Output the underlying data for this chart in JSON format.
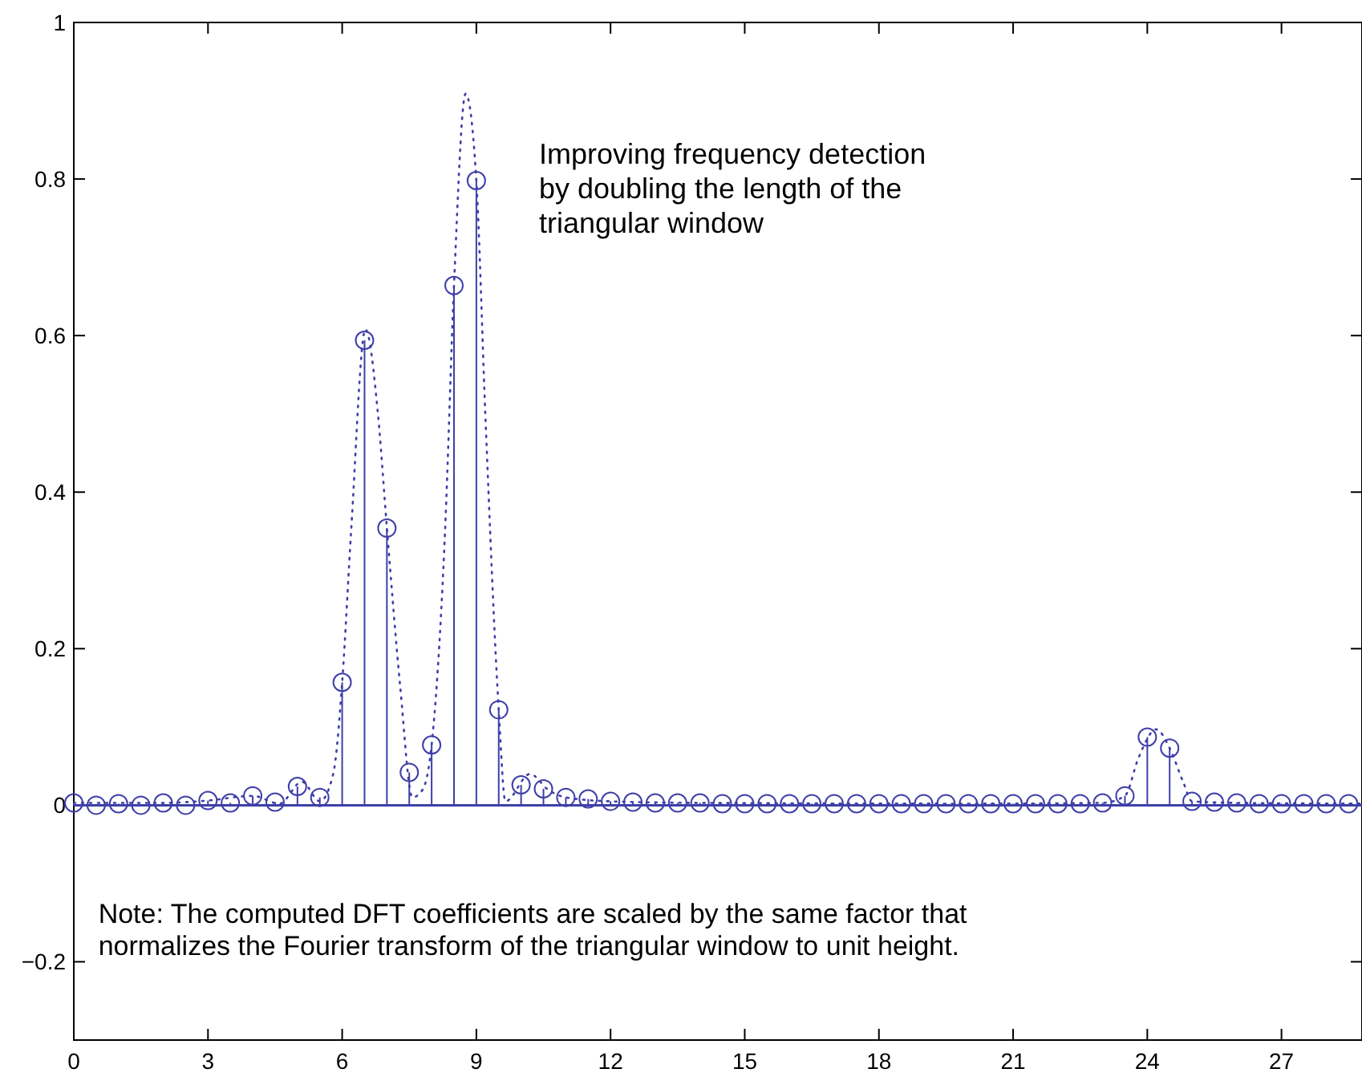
{
  "chart_data": {
    "type": "lollipop",
    "xlim": [
      0,
      28.8
    ],
    "ylim": [
      -0.3,
      1
    ],
    "xticks": [
      0,
      3,
      6,
      9,
      12,
      15,
      18,
      21,
      24,
      27
    ],
    "yticks": [
      {
        "value": -0.2,
        "label": "−0.2"
      },
      0,
      0.2,
      0.4,
      0.6,
      0.8,
      1
    ],
    "grid": false,
    "marker": "circle",
    "ref_lines": [
      {
        "axis": "y",
        "value": 0,
        "color": "#3f3fa8"
      }
    ],
    "series": [
      {
        "type": "line",
        "color": "#3f3fa8",
        "line_style": "dotted",
        "marker": "none",
        "x": [
          0,
          1,
          2,
          3,
          4,
          4.6,
          5.1,
          5.5,
          5.8,
          6,
          6.2,
          6.52,
          6.8,
          7,
          7.3,
          7.57,
          7.8,
          8,
          8.3,
          8.5,
          8.76,
          9,
          9.2,
          9.5,
          9.65,
          10.2,
          10.6,
          11,
          12,
          14,
          20,
          23,
          23.5,
          23.8,
          24.2,
          24.5,
          24.8,
          25,
          26,
          28.8
        ],
        "values": [
          0.003,
          0.003,
          0.003,
          0.006,
          0.012,
          0.002,
          0.03,
          0.005,
          0.04,
          0.157,
          0.35,
          0.608,
          0.5,
          0.354,
          0.15,
          0.01,
          0.02,
          0.077,
          0.35,
          0.664,
          0.909,
          0.798,
          0.5,
          0.122,
          0.005,
          0.04,
          0.02,
          0.01,
          0.005,
          0.003,
          0.002,
          0.003,
          0.012,
          0.06,
          0.097,
          0.073,
          0.03,
          0.005,
          0.003,
          0.002
        ]
      },
      {
        "color": "#3f3fa8",
        "x": [
          0,
          0.5,
          1,
          1.5,
          2,
          2.5,
          3,
          3.5,
          4,
          4.5,
          5,
          5.5,
          6,
          6.5,
          7,
          7.5,
          8,
          8.5,
          9,
          9.5,
          10,
          10.5,
          11,
          11.5,
          12,
          12.5,
          13,
          13.5,
          14,
          14.5,
          15,
          15.5,
          16,
          16.5,
          17,
          17.5,
          18,
          18.5,
          19,
          19.5,
          20,
          20.5,
          21,
          21.5,
          22,
          22.5,
          23,
          23.5,
          24,
          24.5,
          25,
          25.5,
          26,
          26.5,
          27,
          27.5,
          28,
          28.5
        ],
        "values": [
          0.003,
          0,
          0.002,
          0,
          0.003,
          0,
          0.006,
          0.003,
          0.012,
          0.004,
          0.024,
          0.01,
          0.157,
          0.594,
          0.354,
          0.042,
          0.077,
          0.664,
          0.798,
          0.122,
          0.026,
          0.021,
          0.01,
          0.008,
          0.005,
          0.004,
          0.003,
          0.003,
          0.003,
          0.002,
          0.002,
          0.002,
          0.002,
          0.002,
          0.002,
          0.002,
          0.002,
          0.002,
          0.002,
          0.002,
          0.002,
          0.002,
          0.002,
          0.002,
          0.002,
          0.002,
          0.003,
          0.012,
          0.087,
          0.073,
          0.005,
          0.004,
          0.003,
          0.002,
          0.002,
          0.002,
          0.002,
          0.002
        ]
      }
    ],
    "annotations": [
      "Improving frequency detection\nby doubling the length of the\ntriangular window",
      "Note: The computed DFT coefficients are scaled by the same factor that\nnormalizes the Fourier transform of the triangular window to unit height."
    ]
  }
}
